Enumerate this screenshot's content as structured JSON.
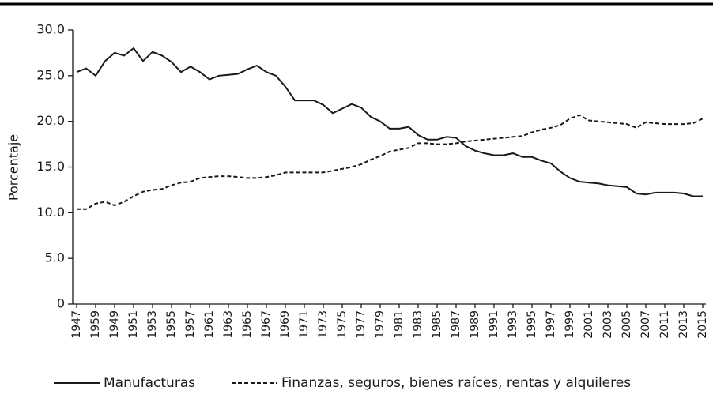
{
  "chart_data": {
    "type": "line",
    "y_label": "Porcentaje",
    "categories": [
      "1947",
      null,
      "1959",
      null,
      "1949",
      null,
      "1951",
      null,
      "1953",
      null,
      "1955",
      null,
      "1957",
      null,
      "1961",
      null,
      "1963",
      null,
      "1965",
      null,
      "1967",
      null,
      "1969",
      null,
      "1971",
      null,
      "1973",
      null,
      "1975",
      null,
      "1977",
      null,
      "1979",
      null,
      "1981",
      null,
      "1983",
      null,
      "1985",
      null,
      "1987",
      null,
      "1989",
      null,
      "1991",
      null,
      "1993",
      null,
      "1995",
      null,
      "1997",
      null,
      "1999",
      null,
      "2001",
      null,
      "2003",
      null,
      "2005",
      null,
      "2007",
      null,
      "2011",
      null,
      "2013",
      null,
      "2015"
    ],
    "series": [
      {
        "name": "Manufacturas",
        "color": "#1a1a1a",
        "dash": false,
        "values": [
          25.4,
          25.8,
          25.0,
          26.6,
          27.5,
          27.2,
          28.0,
          26.6,
          27.6,
          27.2,
          26.5,
          25.4,
          26.0,
          25.4,
          24.6,
          25.0,
          25.1,
          25.2,
          25.7,
          26.1,
          25.4,
          25.0,
          23.8,
          22.3,
          22.3,
          22.3,
          21.8,
          20.9,
          21.4,
          21.9,
          21.5,
          20.5,
          20.0,
          19.2,
          19.2,
          19.4,
          18.5,
          18.0,
          18.0,
          18.3,
          18.2,
          17.3,
          16.8,
          16.5,
          16.3,
          16.3,
          16.5,
          16.1,
          16.1,
          15.7,
          15.4,
          14.5,
          13.8,
          13.4,
          13.3,
          13.2,
          13.0,
          12.9,
          12.8,
          12.1,
          12.0,
          12.2,
          12.2,
          12.2,
          12.1,
          11.8,
          11.8
        ]
      },
      {
        "name": "Finanzas, seguros, bienes raíces, rentas y alquileres",
        "color": "#1a1a1a",
        "dash": true,
        "values": [
          10.4,
          10.4,
          11.0,
          11.2,
          10.8,
          11.2,
          11.8,
          12.3,
          12.5,
          12.6,
          13.0,
          13.3,
          13.4,
          13.8,
          13.9,
          14.0,
          14.0,
          13.9,
          13.8,
          13.8,
          13.9,
          14.1,
          14.4,
          14.4,
          14.4,
          14.4,
          14.4,
          14.6,
          14.8,
          15.0,
          15.3,
          15.8,
          16.2,
          16.7,
          16.9,
          17.1,
          17.6,
          17.6,
          17.5,
          17.5,
          17.6,
          17.8,
          17.9,
          18.0,
          18.1,
          18.2,
          18.3,
          18.4,
          18.8,
          19.1,
          19.3,
          19.6,
          20.3,
          20.7,
          20.1,
          20.0,
          19.9,
          19.8,
          19.7,
          19.3,
          19.9,
          19.8,
          19.7,
          19.7,
          19.7,
          19.8,
          20.3
        ]
      }
    ],
    "ylim": [
      0,
      30
    ],
    "yticks": [
      0,
      {
        "value": 5,
        "label": "5.0"
      },
      {
        "value": 10,
        "label": "10.0"
      },
      {
        "value": 15,
        "label": "15.0"
      },
      {
        "value": 20,
        "label": "20.0"
      },
      {
        "value": 25,
        "label": "25.0"
      },
      {
        "value": 30,
        "label": "30.0"
      }
    ],
    "grid": false,
    "legend": "bottom"
  }
}
